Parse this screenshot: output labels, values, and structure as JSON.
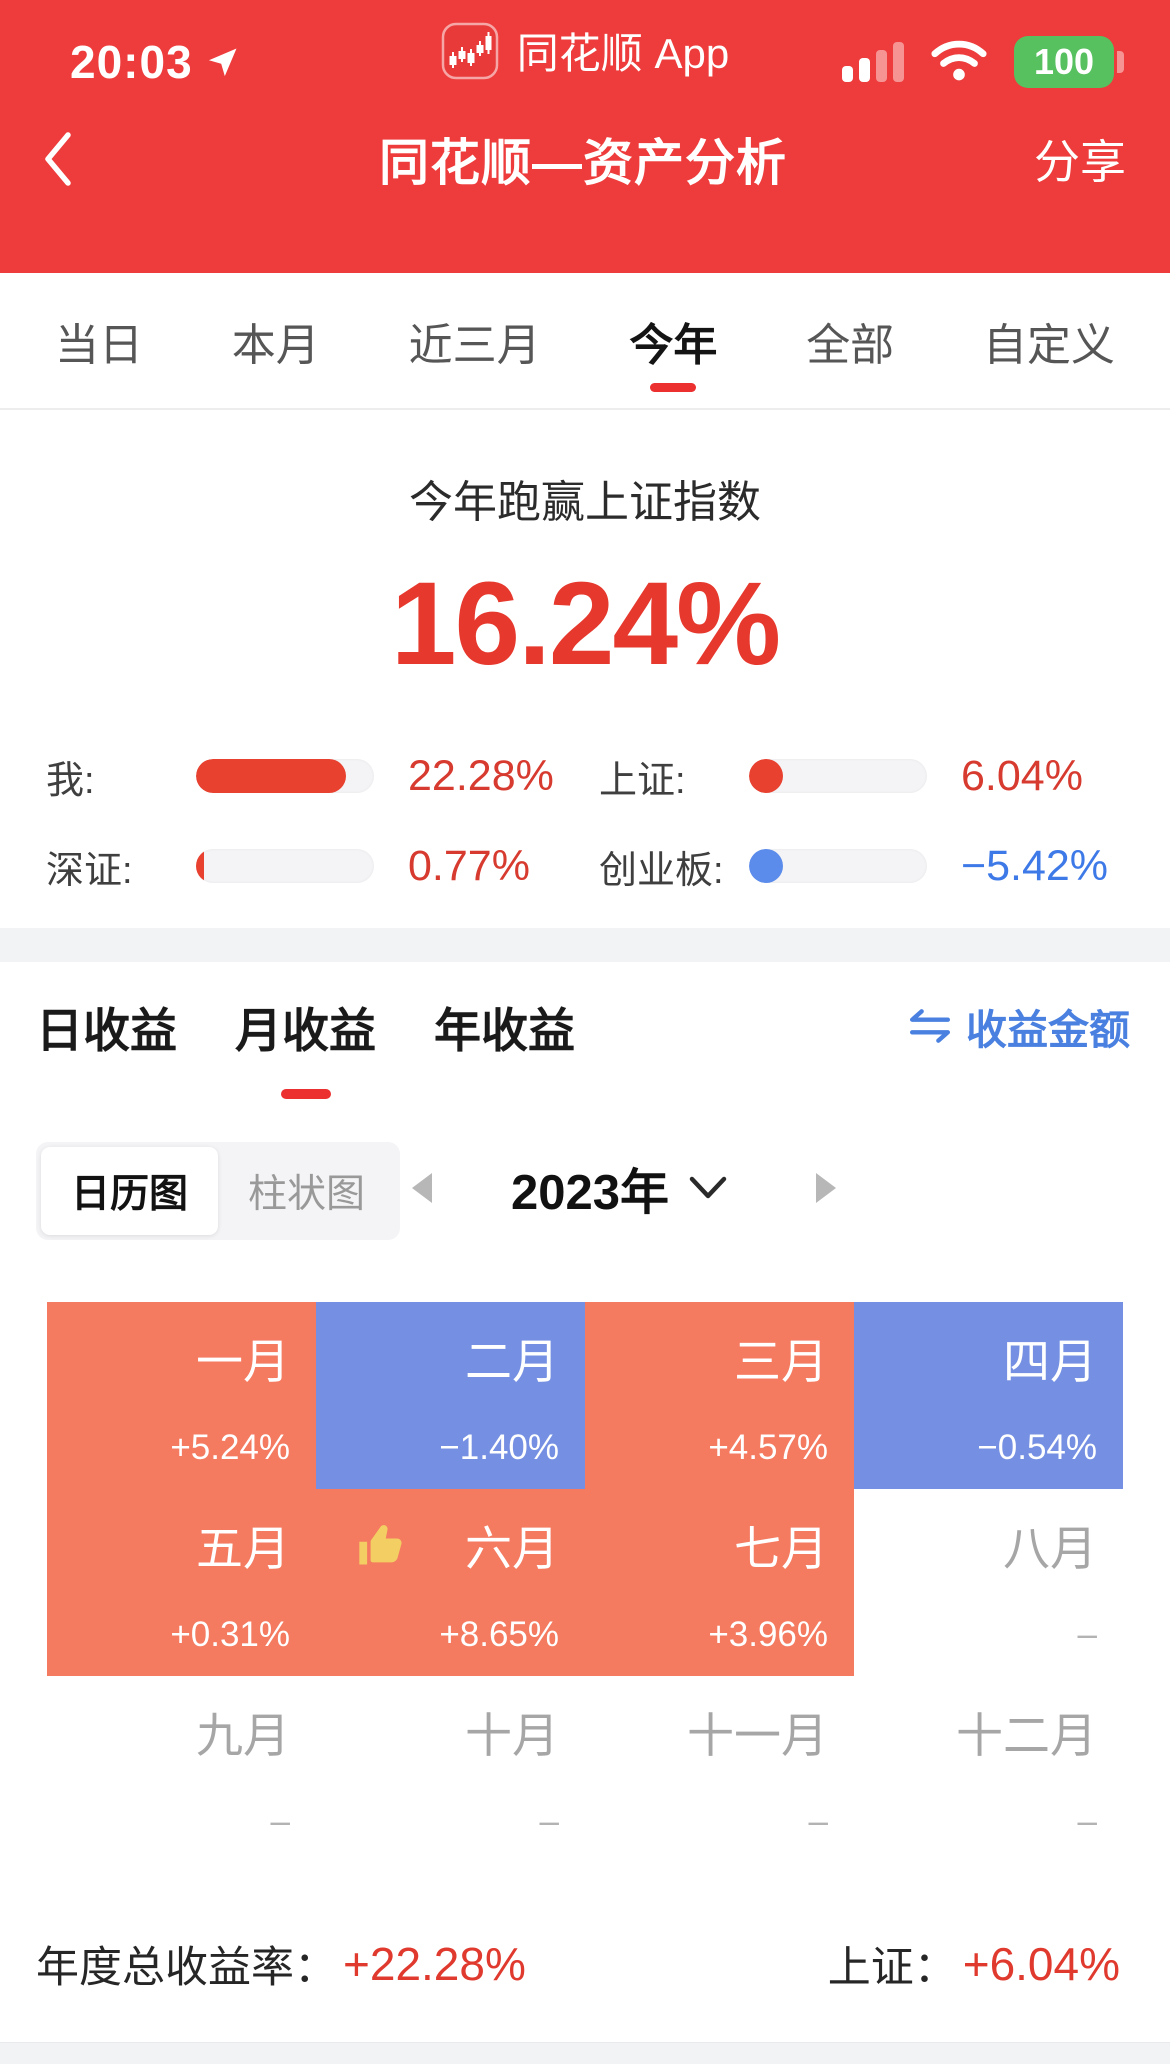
{
  "status_bar": {
    "time": "20:03",
    "app_label": "同花顺 App",
    "battery_level": "100"
  },
  "nav_bar": {
    "title": "同花顺—资产分析",
    "share_label": "分享"
  },
  "period_tabs": {
    "items": [
      {
        "label": "当日"
      },
      {
        "label": "本月"
      },
      {
        "label": "近三月"
      },
      {
        "label": "今年"
      },
      {
        "label": "全部"
      },
      {
        "label": "自定义"
      }
    ]
  },
  "hero": {
    "headline": "今年跑赢上证指数",
    "outperform_value": "16.24%"
  },
  "comparison": {
    "rows": [
      {
        "label": "我:",
        "value": "22.28%",
        "fill_pct": 84,
        "tone": "red"
      },
      {
        "label": "上证:",
        "value": "6.04%",
        "fill_pct": 19,
        "tone": "red"
      },
      {
        "label": "深证:",
        "value": "0.77%",
        "fill_pct": 4.5,
        "tone": "red"
      },
      {
        "label": "创业板:",
        "value": "−5.42%",
        "fill_pct": 19,
        "tone": "blue"
      }
    ]
  },
  "income": {
    "tabs": [
      {
        "label": "日收益"
      },
      {
        "label": "月收益"
      },
      {
        "label": "年收益"
      }
    ],
    "amount_toggle_label": "收益金额",
    "view_toggle": [
      {
        "label": "日历图"
      },
      {
        "label": "柱状图"
      }
    ],
    "year_label": "2023年"
  },
  "calendar": {
    "months": [
      {
        "name": "一月",
        "value": "+5.24%",
        "type": "up"
      },
      {
        "name": "二月",
        "value": "−1.40%",
        "type": "down"
      },
      {
        "name": "三月",
        "value": "+4.57%",
        "type": "up"
      },
      {
        "name": "四月",
        "value": "−0.54%",
        "type": "down"
      },
      {
        "name": "五月",
        "value": "+0.31%",
        "type": "up"
      },
      {
        "name": "六月",
        "value": "+8.65%",
        "type": "up"
      },
      {
        "name": "七月",
        "value": "+3.96%",
        "type": "up"
      },
      {
        "name": "八月",
        "value": "–",
        "type": "none"
      },
      {
        "name": "九月",
        "value": "–",
        "type": "none"
      },
      {
        "name": "十月",
        "value": "–",
        "type": "none"
      },
      {
        "name": "十一月",
        "value": "–",
        "type": "none"
      },
      {
        "name": "十二月",
        "value": "–",
        "type": "none"
      }
    ]
  },
  "footer": {
    "total_label": "年度总收益率：",
    "total_value": "+22.28%",
    "benchmark_label": "上证：",
    "benchmark_value": "+6.04%"
  },
  "colors": {
    "header_red": "#EE3B3B",
    "accent_red": "#E6382D",
    "positive_cell": "#F47A60",
    "negative_cell": "#7590E2",
    "link_blue": "#4A80E0",
    "battery_green": "#57C05F"
  }
}
